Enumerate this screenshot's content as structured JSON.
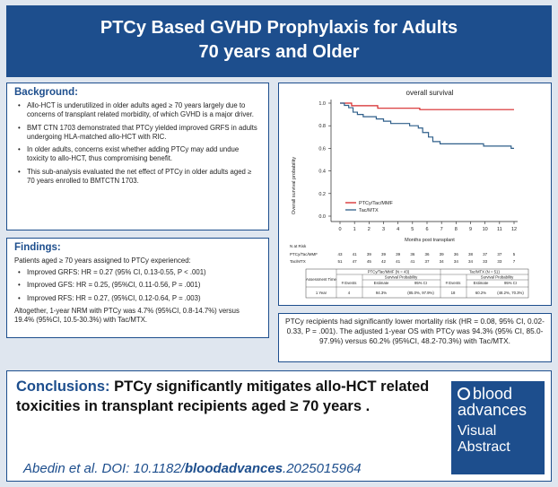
{
  "header": {
    "title_line1": "PTCy Based GVHD Prophylaxis for Adults",
    "title_line2": "70 years and Older"
  },
  "background": {
    "title": "Background:",
    "bullets": [
      "Allo-HCT is underutilized in older adults aged ≥ 70 years largely due to concerns of transplant related morbidity, of which GVHD is a major driver.",
      "BMT CTN 1703 demonstrated that PTCy yielded improved GRFS in adults undergoing HLA-matched allo-HCT with RIC.",
      "In older adults, concerns exist whether adding PTCy may add undue toxicity to allo-HCT, thus compromising benefit.",
      "This sub-analysis evaluated the net effect of PTCy in older adults aged ≥ 70 years enrolled to BMTCTN 1703."
    ]
  },
  "findings": {
    "title": "Findings:",
    "intro": "Patients aged ≥ 70 years assigned to PTCy experienced:",
    "bullets": [
      "Improved GRFS: HR = 0.27 (95% CI, 0.13-0.55, P < .001)",
      "Improved GFS: HR = 0.25, (95%CI, 0.11-0.56, P = .001)",
      "Improved RFS: HR = 0.27, (95%CI, 0.12-0.64, P = .003)"
    ],
    "nrm": "Altogether, 1-year NRM with PTCy was 4.7% (95%CI, 0.8-14.7%) versus 19.4% (95%CI, 10.5-30.3%) with Tac/MTX."
  },
  "chart_data": {
    "type": "line",
    "title": "overall survival",
    "xlabel": "Months post transplant",
    "ylabel": "Overall survival probability",
    "xlim": [
      0,
      12
    ],
    "ylim": [
      0,
      1.0
    ],
    "x_ticks": [
      "0",
      "1",
      "2",
      "3",
      "4",
      "5",
      "6",
      "7",
      "8",
      "9",
      "10",
      "11",
      "12"
    ],
    "y_ticks": [
      "0.0",
      "0.2",
      "0.4",
      "0.6",
      "0.8",
      "1.0"
    ],
    "series": [
      {
        "name": "PTCy/Tac/MMF",
        "color": "#d62728",
        "points": [
          [
            0,
            1.0
          ],
          [
            0.8,
            1.0
          ],
          [
            0.8,
            0.977
          ],
          [
            2.6,
            0.977
          ],
          [
            2.6,
            0.955
          ],
          [
            5.5,
            0.955
          ],
          [
            5.5,
            0.943
          ],
          [
            12,
            0.943
          ]
        ]
      },
      {
        "name": "Tac/MTX",
        "color": "#2f5f8a",
        "points": [
          [
            0,
            1.0
          ],
          [
            0.3,
            1.0
          ],
          [
            0.3,
            0.98
          ],
          [
            0.6,
            0.98
          ],
          [
            0.6,
            0.96
          ],
          [
            0.9,
            0.96
          ],
          [
            0.9,
            0.92
          ],
          [
            1.2,
            0.92
          ],
          [
            1.2,
            0.9
          ],
          [
            1.6,
            0.9
          ],
          [
            1.6,
            0.88
          ],
          [
            2.5,
            0.88
          ],
          [
            2.5,
            0.86
          ],
          [
            3.0,
            0.86
          ],
          [
            3.0,
            0.84
          ],
          [
            3.5,
            0.84
          ],
          [
            3.5,
            0.82
          ],
          [
            4.8,
            0.82
          ],
          [
            4.8,
            0.8
          ],
          [
            5.4,
            0.8
          ],
          [
            5.4,
            0.78
          ],
          [
            5.7,
            0.78
          ],
          [
            5.7,
            0.74
          ],
          [
            6.1,
            0.74
          ],
          [
            6.1,
            0.7
          ],
          [
            6.4,
            0.7
          ],
          [
            6.4,
            0.66
          ],
          [
            6.9,
            0.66
          ],
          [
            6.9,
            0.64
          ],
          [
            9.9,
            0.64
          ],
          [
            9.9,
            0.62
          ],
          [
            11.8,
            0.62
          ],
          [
            11.8,
            0.6
          ],
          [
            12,
            0.6
          ]
        ]
      }
    ],
    "risk_title": "N at Risk",
    "risk_table": [
      {
        "label": "PTCy/Tac/MMF",
        "values": [
          "43",
          "41",
          "39",
          "39",
          "39",
          "36",
          "36",
          "39",
          "36",
          "38",
          "37",
          "37",
          "5"
        ]
      },
      {
        "label": "Tac/MTX",
        "values": [
          "51",
          "47",
          "45",
          "42",
          "41",
          "41",
          "37",
          "34",
          "34",
          "34",
          "33",
          "33",
          "7"
        ]
      }
    ],
    "estimate_table": {
      "group1": "PTCy/Tac/MMF (N = 43)",
      "group2": "Tac/MTX (N = 51)",
      "assessment_label": "Assessment Time",
      "survival_label": "Survival Probability",
      "col_events": "# Events",
      "col_estimate": "Estimate",
      "col_ci": "95% CI",
      "row_time": "1 Year",
      "g1_events": "4",
      "g1_estimate": "94.3%",
      "g1_ci": "(85.0%, 97.9%)",
      "g2_events": "18",
      "g2_estimate": "60.2%",
      "g2_ci": "(48.2%, 70.3%)"
    }
  },
  "summary": {
    "text": "PTCy recipients had significantly lower mortality risk (HR = 0.08, 95% CI, 0.02-0.33, P = .001). The adjusted 1-year OS with PTCy was 94.3% (95% CI, 85.0-97.9%) versus 60.2% (95%CI, 48.2-70.3%) with Tac/MTX."
  },
  "conclusion": {
    "label": "Conclusions:",
    "text": "PTCy significantly mitigates allo-HCT related toxicities in transplant recipients aged ≥ 70 years ."
  },
  "citation": {
    "prefix": "Abedin et al. DOI: 10.1182/",
    "bold": "bloodadvances",
    "suffix": ".2025015964"
  },
  "logo": {
    "line1": "blood",
    "line2": "advances",
    "line3": "Visual",
    "line4": "Abstract"
  },
  "colors": {
    "brand": "#1d4e8d",
    "ptcy": "#d62728",
    "tacmtx": "#2f5f8a"
  }
}
